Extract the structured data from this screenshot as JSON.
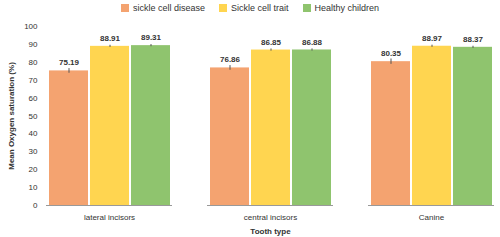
{
  "chart_data": {
    "type": "bar",
    "categories": [
      "lateral incisors",
      "central incisors",
      "Canine"
    ],
    "series": [
      {
        "name": "sickle cell disease",
        "color": "#F4A370",
        "values": [
          75.19,
          76.86,
          80.35
        ],
        "errors": [
          1.3,
          1.3,
          1.5
        ]
      },
      {
        "name": "Sickle cell trait",
        "color": "#FFD550",
        "values": [
          88.91,
          86.85,
          88.97
        ],
        "errors": [
          0.6,
          0.6,
          0.6
        ]
      },
      {
        "name": "Healthy children",
        "color": "#8FC46E",
        "values": [
          89.31,
          86.88,
          88.37
        ],
        "errors": [
          0.6,
          0.6,
          0.6
        ]
      }
    ],
    "xlabel": "Tooth type",
    "ylabel": "Mean Oxygen saturation (%)",
    "ylim": [
      0,
      100
    ],
    "yticks": [
      0,
      10,
      20,
      30,
      40,
      50,
      60,
      70,
      80,
      90,
      100
    ],
    "data_labels": true,
    "legend": "top",
    "grid": false
  }
}
